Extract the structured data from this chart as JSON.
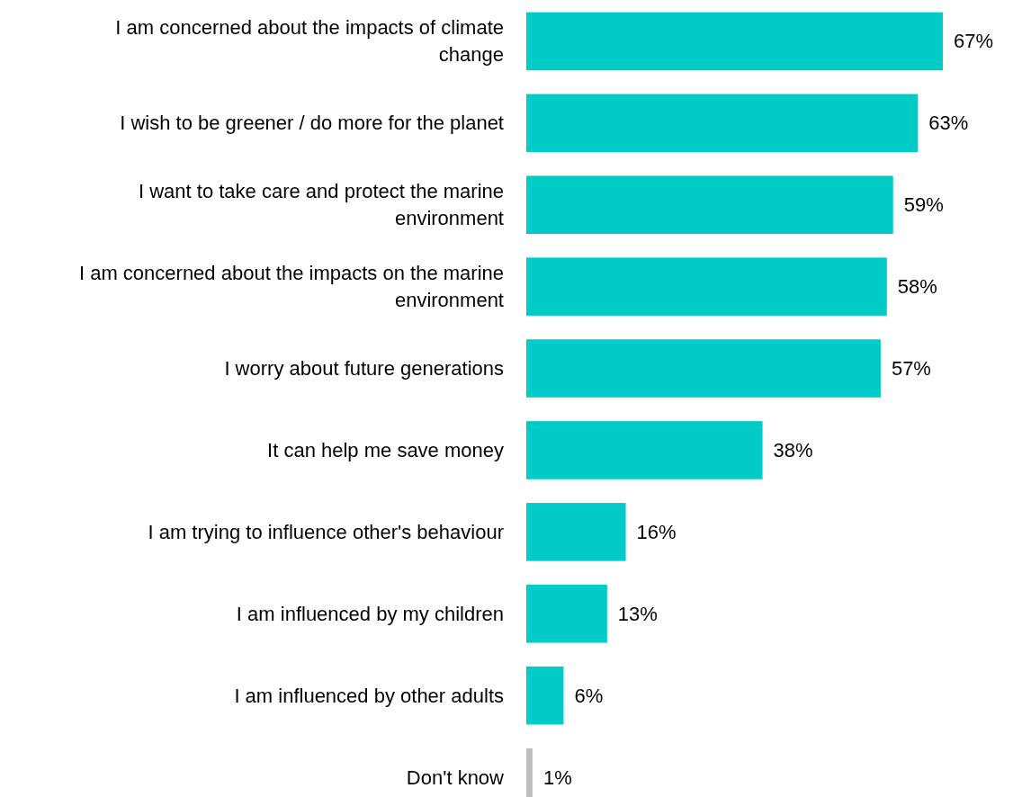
{
  "chart_data": {
    "type": "bar",
    "orientation": "horizontal",
    "categories": [
      "I am concerned about the impacts of climate change",
      "I wish to be greener / do more for the planet",
      "I want to take care and protect the marine environment",
      "I am concerned about the impacts on the marine environment",
      "I worry about future generations",
      "It can help me save money",
      "I am trying to influence other's behaviour",
      "I am influenced by my children",
      "I am influenced by other adults",
      "Don't know"
    ],
    "values": [
      67,
      63,
      59,
      58,
      57,
      38,
      16,
      13,
      6,
      1
    ],
    "value_labels": [
      "67%",
      "63%",
      "59%",
      "58%",
      "57%",
      "38%",
      "16%",
      "13%",
      "6%",
      "1%"
    ],
    "colors": [
      "#00cbc6",
      "#00cbc6",
      "#00cbc6",
      "#00cbc6",
      "#00cbc6",
      "#00cbc6",
      "#00cbc6",
      "#00cbc6",
      "#00cbc6",
      "#bfbfbf"
    ]
  }
}
